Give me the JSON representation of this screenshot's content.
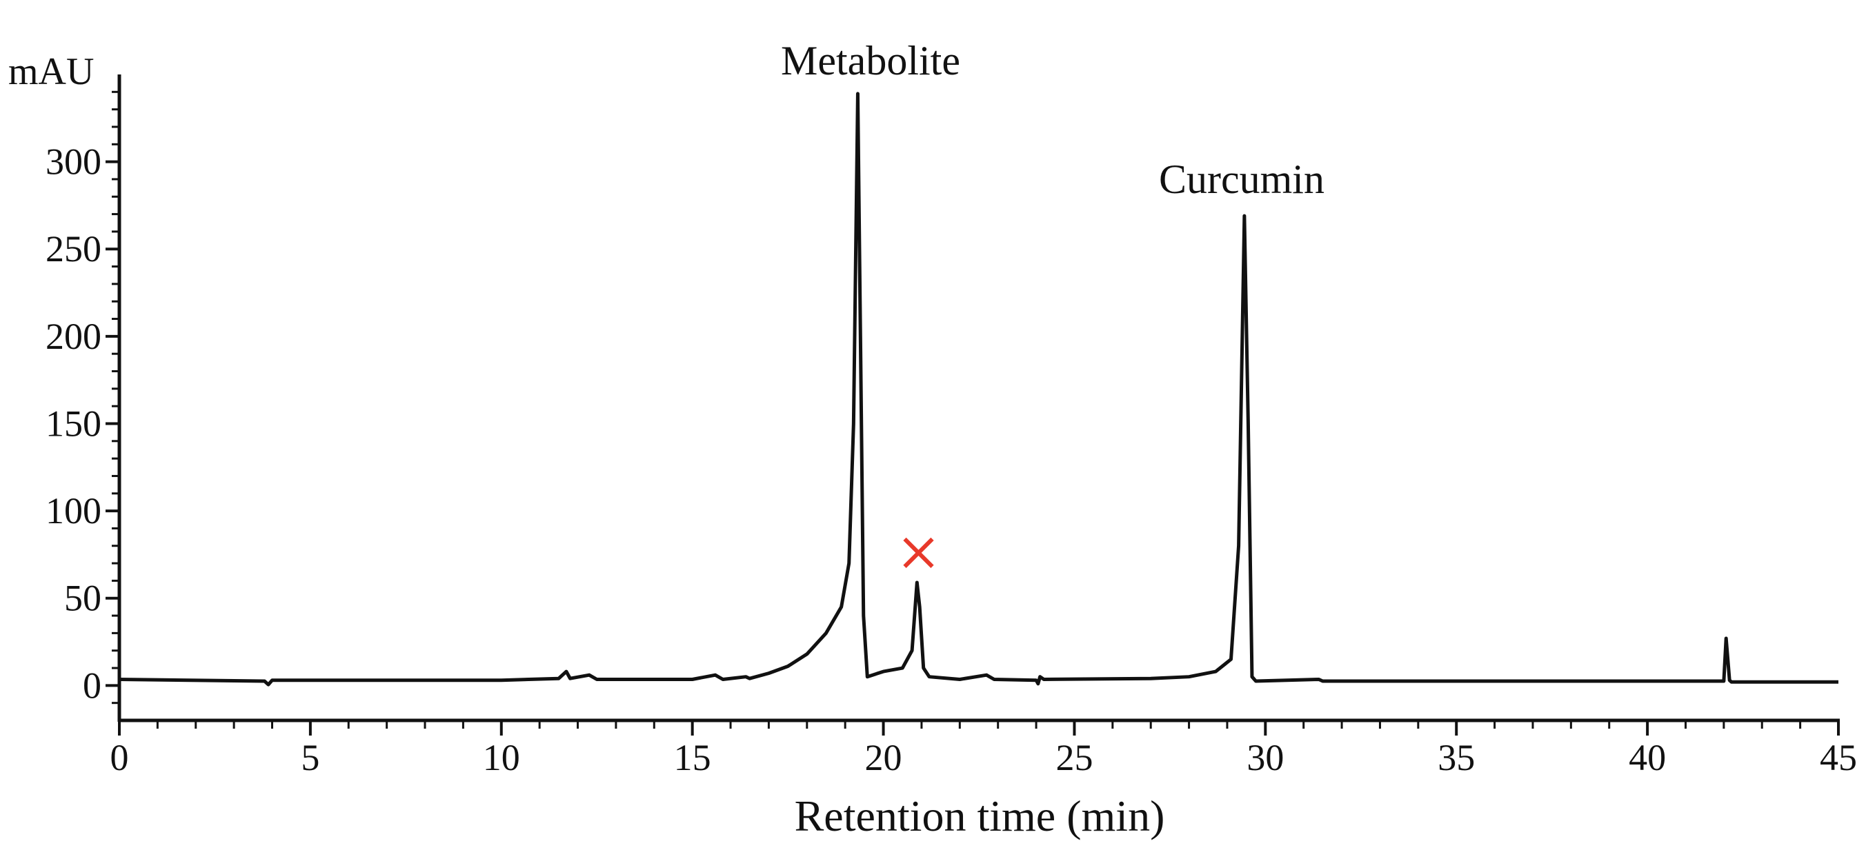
{
  "chart_data": {
    "type": "line",
    "xlabel": "Retention time (min)",
    "ylabel": "mAU",
    "annotations": [
      "Metabolite",
      "Curcumin"
    ],
    "x": [
      0,
      3.8,
      3.9,
      4.0,
      10,
      11.5,
      11.7,
      11.8,
      12.3,
      12.5,
      15,
      15.6,
      15.8,
      16.4,
      16.5,
      17,
      17.5,
      18,
      18.5,
      18.9,
      19.1,
      19.22,
      19.33,
      19.4,
      19.48,
      19.58,
      20,
      20.5,
      20.75,
      20.88,
      20.95,
      21.05,
      21.2,
      22,
      22.7,
      22.9,
      24,
      24.05,
      24.1,
      24.2,
      27,
      28,
      28.7,
      29.1,
      29.3,
      29.45,
      29.55,
      29.65,
      29.75,
      31.4,
      31.5,
      42,
      42.06,
      42.15,
      42.2,
      45
    ],
    "series": [
      {
        "color": "#111111",
        "values": [
          3.5,
          2.5,
          0.5,
          3,
          3,
          4,
          8,
          4,
          6,
          3.5,
          3.5,
          6,
          3.5,
          5,
          4,
          7,
          11,
          18,
          30,
          45,
          70,
          150,
          339,
          200,
          40,
          5,
          8,
          10,
          20,
          59,
          45,
          10,
          5,
          3.5,
          6,
          3.5,
          3,
          1,
          5,
          3.5,
          4,
          5,
          8,
          15,
          80,
          269,
          150,
          5,
          2.5,
          3.5,
          2.5,
          2.5,
          27,
          3,
          2,
          2
        ]
      }
    ],
    "markers": [
      {
        "x": 20.92,
        "y": 76,
        "color": "#e8392a"
      }
    ],
    "xlim": [
      0,
      45
    ],
    "xticks": [
      0,
      5,
      10,
      15,
      20,
      25,
      30,
      35,
      40,
      45
    ],
    "xminorticks": [
      1,
      2,
      3,
      4,
      6,
      7,
      8,
      9,
      11,
      12,
      13,
      14,
      16,
      17,
      18,
      19,
      21,
      22,
      23,
      24,
      26,
      27,
      28,
      29,
      31,
      32,
      33,
      34,
      36,
      37,
      38,
      39,
      41,
      42,
      43,
      44
    ],
    "ylim": [
      -20,
      350
    ],
    "yticks": [
      0,
      50,
      100,
      150,
      200,
      250,
      300
    ],
    "yminorticks": [
      -10,
      10,
      20,
      30,
      40,
      60,
      70,
      80,
      90,
      110,
      120,
      130,
      140,
      160,
      170,
      180,
      190,
      210,
      220,
      230,
      240,
      260,
      270,
      280,
      290,
      310,
      320,
      330,
      340
    ]
  }
}
